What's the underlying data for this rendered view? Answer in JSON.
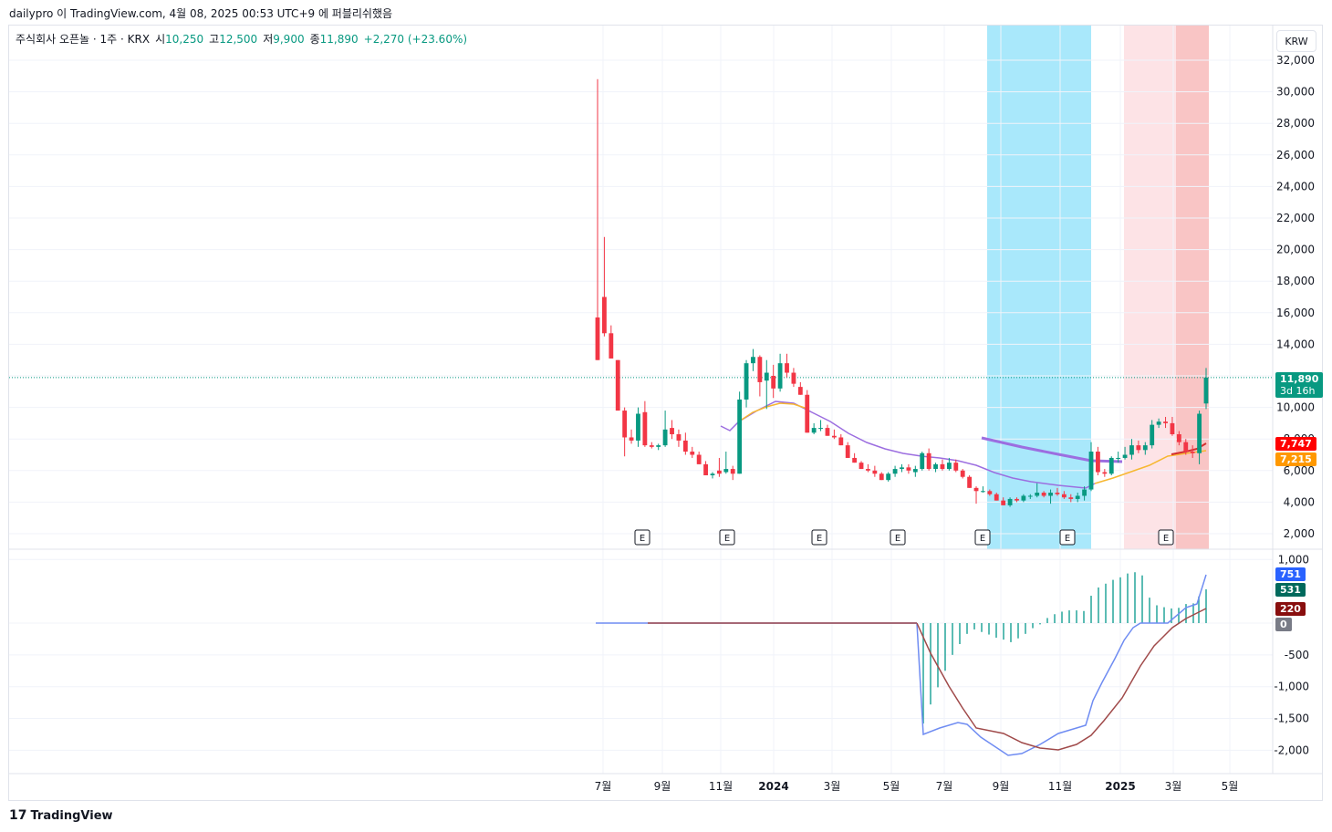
{
  "header": {
    "text": "dailypro 이 TradingView.com, 4월 08, 2025 00:53 UTC+9 에 퍼블리쉬했음"
  },
  "legend": {
    "symbol": "주식회사 오픈놀 · 1주 · KRX",
    "open_label": "시",
    "open_value": "10,250",
    "high_label": "고",
    "high_value": "12,500",
    "low_label": "저",
    "low_value": "9,900",
    "close_label": "종",
    "close_value": "11,890",
    "change": "+2,270 (+23.60%)"
  },
  "currency_button": "KRW",
  "price_axis_labels": [
    "32,000",
    "30,000",
    "28,000",
    "26,000",
    "24,000",
    "22,000",
    "20,000",
    "18,000",
    "16,000",
    "14,000",
    "10,000",
    "8,000",
    "6,000",
    "4,000",
    "2,000"
  ],
  "macd_axis_labels": [
    "1,000",
    "-500",
    "-1,000",
    "-1,500",
    "-2,000"
  ],
  "time_axis_labels": [
    "7월",
    "9월",
    "11월",
    "2024",
    "3월",
    "5월",
    "7월",
    "9월",
    "11월",
    "2025",
    "3월",
    "5월"
  ],
  "tags": {
    "last_price": "11,890",
    "countdown": "3d 16h",
    "ma_red": "7,747",
    "ma_orange": "7,215",
    "macd_line": "751",
    "histogram": "531",
    "signal": "220",
    "zero": "0"
  },
  "earnings_marker": "E",
  "footer": {
    "brand": "TradingView"
  },
  "colors": {
    "up": "#089981",
    "down": "#f23645",
    "purple_ma": "#9c6ee0",
    "orange_ma": "#f7b731",
    "red_ma": "#d32f2f",
    "macd": "#6f8cf2",
    "signal": "#a04a4a",
    "cyan_zone": "#a9e8fb",
    "pink_zone": "#fde3e6",
    "red_zone": "#f9c5c5"
  },
  "chart_data": {
    "type": "candlestick",
    "title": "",
    "price_scale": [
      2000,
      32000
    ],
    "candles": [
      {
        "o": 15700,
        "h": 30800,
        "l": 13000,
        "c": 13000
      },
      {
        "o": 17000,
        "h": 20800,
        "l": 14500,
        "c": 14700
      },
      {
        "o": 14700,
        "h": 15200,
        "l": 13100,
        "c": 13100
      },
      {
        "o": 13000,
        "h": 13000,
        "l": 9800,
        "c": 9800
      },
      {
        "o": 9800,
        "h": 10000,
        "l": 6900,
        "c": 8100
      },
      {
        "o": 8100,
        "h": 8600,
        "l": 7700,
        "c": 7900
      },
      {
        "o": 7900,
        "h": 10000,
        "l": 7500,
        "c": 9600
      },
      {
        "o": 9700,
        "h": 10400,
        "l": 7500,
        "c": 7600
      },
      {
        "o": 7600,
        "h": 7800,
        "l": 7400,
        "c": 7500
      },
      {
        "o": 7500,
        "h": 7700,
        "l": 7300,
        "c": 7600
      },
      {
        "o": 7600,
        "h": 9800,
        "l": 7500,
        "c": 8600
      },
      {
        "o": 8700,
        "h": 9200,
        "l": 8000,
        "c": 8300
      },
      {
        "o": 8300,
        "h": 8600,
        "l": 7500,
        "c": 7900
      },
      {
        "o": 7900,
        "h": 8400,
        "l": 7000,
        "c": 7200
      },
      {
        "o": 7200,
        "h": 7500,
        "l": 6800,
        "c": 7000
      },
      {
        "o": 7000,
        "h": 7200,
        "l": 6400,
        "c": 6400
      },
      {
        "o": 6400,
        "h": 6600,
        "l": 5700,
        "c": 5700
      },
      {
        "o": 5700,
        "h": 5900,
        "l": 5500,
        "c": 5800
      },
      {
        "o": 6000,
        "h": 6800,
        "l": 5600,
        "c": 5800
      },
      {
        "o": 5900,
        "h": 7200,
        "l": 5800,
        "c": 6100
      },
      {
        "o": 6100,
        "h": 6300,
        "l": 5400,
        "c": 5800
      },
      {
        "o": 5800,
        "h": 11000,
        "l": 5800,
        "c": 10500
      },
      {
        "o": 10500,
        "h": 13000,
        "l": 10000,
        "c": 12800
      },
      {
        "o": 12800,
        "h": 13700,
        "l": 12300,
        "c": 13200
      },
      {
        "o": 13200,
        "h": 13300,
        "l": 10700,
        "c": 11600
      },
      {
        "o": 11700,
        "h": 13000,
        "l": 9900,
        "c": 12200
      },
      {
        "o": 12000,
        "h": 12700,
        "l": 10600,
        "c": 11200
      },
      {
        "o": 11200,
        "h": 13400,
        "l": 11000,
        "c": 12800
      },
      {
        "o": 12800,
        "h": 13400,
        "l": 11900,
        "c": 12200
      },
      {
        "o": 12200,
        "h": 12500,
        "l": 11300,
        "c": 11500
      },
      {
        "o": 11300,
        "h": 11600,
        "l": 10800,
        "c": 10800
      },
      {
        "o": 10800,
        "h": 11100,
        "l": 8400,
        "c": 8400
      },
      {
        "o": 8400,
        "h": 9000,
        "l": 8300,
        "c": 8700
      },
      {
        "o": 8700,
        "h": 9200,
        "l": 8500,
        "c": 8700
      },
      {
        "o": 8700,
        "h": 8900,
        "l": 8200,
        "c": 8200
      },
      {
        "o": 8200,
        "h": 8600,
        "l": 8000,
        "c": 8100
      },
      {
        "o": 8100,
        "h": 8300,
        "l": 7600,
        "c": 7600
      },
      {
        "o": 7600,
        "h": 7800,
        "l": 6800,
        "c": 6800
      },
      {
        "o": 6800,
        "h": 7100,
        "l": 6500,
        "c": 6500
      },
      {
        "o": 6500,
        "h": 6600,
        "l": 6100,
        "c": 6100
      },
      {
        "o": 6100,
        "h": 6400,
        "l": 5900,
        "c": 6000
      },
      {
        "o": 6000,
        "h": 6300,
        "l": 5600,
        "c": 5800
      },
      {
        "o": 5800,
        "h": 5900,
        "l": 5400,
        "c": 5400
      },
      {
        "o": 5400,
        "h": 5900,
        "l": 5300,
        "c": 5800
      },
      {
        "o": 5800,
        "h": 6300,
        "l": 5600,
        "c": 6100
      },
      {
        "o": 6100,
        "h": 6400,
        "l": 5900,
        "c": 6200
      },
      {
        "o": 6200,
        "h": 6400,
        "l": 5800,
        "c": 6000
      },
      {
        "o": 5900,
        "h": 6300,
        "l": 5600,
        "c": 6100
      },
      {
        "o": 6100,
        "h": 7200,
        "l": 6000,
        "c": 7100
      },
      {
        "o": 7100,
        "h": 7400,
        "l": 6000,
        "c": 6100
      },
      {
        "o": 6100,
        "h": 6500,
        "l": 5900,
        "c": 6400
      },
      {
        "o": 6400,
        "h": 6700,
        "l": 6000,
        "c": 6100
      },
      {
        "o": 6100,
        "h": 6800,
        "l": 6000,
        "c": 6500
      },
      {
        "o": 6500,
        "h": 6700,
        "l": 5900,
        "c": 6000
      },
      {
        "o": 6000,
        "h": 6100,
        "l": 5500,
        "c": 5600
      },
      {
        "o": 5600,
        "h": 5700,
        "l": 4900,
        "c": 4900
      },
      {
        "o": 4900,
        "h": 5000,
        "l": 3900,
        "c": 4700
      },
      {
        "o": 4700,
        "h": 5000,
        "l": 4600,
        "c": 4700
      },
      {
        "o": 4700,
        "h": 4800,
        "l": 4400,
        "c": 4500
      },
      {
        "o": 4500,
        "h": 4600,
        "l": 4100,
        "c": 4100
      },
      {
        "o": 4100,
        "h": 4300,
        "l": 3800,
        "c": 3800
      },
      {
        "o": 3800,
        "h": 4300,
        "l": 3700,
        "c": 4200
      },
      {
        "o": 4200,
        "h": 4300,
        "l": 4000,
        "c": 4100
      },
      {
        "o": 4100,
        "h": 4500,
        "l": 4000,
        "c": 4400
      },
      {
        "o": 4400,
        "h": 4500,
        "l": 4200,
        "c": 4400
      },
      {
        "o": 4400,
        "h": 5200,
        "l": 4300,
        "c": 4600
      },
      {
        "o": 4600,
        "h": 4700,
        "l": 4300,
        "c": 4400
      },
      {
        "o": 4400,
        "h": 4800,
        "l": 3900,
        "c": 4600
      },
      {
        "o": 4600,
        "h": 4900,
        "l": 4400,
        "c": 4500
      },
      {
        "o": 4500,
        "h": 4700,
        "l": 4200,
        "c": 4300
      },
      {
        "o": 4300,
        "h": 4500,
        "l": 4000,
        "c": 4200
      },
      {
        "o": 4200,
        "h": 4600,
        "l": 4000,
        "c": 4400
      },
      {
        "o": 4400,
        "h": 5000,
        "l": 4100,
        "c": 4800
      },
      {
        "o": 4800,
        "h": 7800,
        "l": 4700,
        "c": 7200
      },
      {
        "o": 7200,
        "h": 7500,
        "l": 5700,
        "c": 5900
      },
      {
        "o": 5900,
        "h": 6100,
        "l": 5600,
        "c": 5800
      },
      {
        "o": 5800,
        "h": 6900,
        "l": 5700,
        "c": 6800
      },
      {
        "o": 6800,
        "h": 7200,
        "l": 6500,
        "c": 6800
      },
      {
        "o": 6800,
        "h": 7500,
        "l": 6700,
        "c": 7000
      },
      {
        "o": 7000,
        "h": 8000,
        "l": 6700,
        "c": 7600
      },
      {
        "o": 7600,
        "h": 7900,
        "l": 7100,
        "c": 7300
      },
      {
        "o": 7300,
        "h": 7800,
        "l": 7000,
        "c": 7600
      },
      {
        "o": 7600,
        "h": 9200,
        "l": 7400,
        "c": 8900
      },
      {
        "o": 8900,
        "h": 9300,
        "l": 8700,
        "c": 9100
      },
      {
        "o": 9100,
        "h": 9400,
        "l": 8700,
        "c": 9000
      },
      {
        "o": 9000,
        "h": 9400,
        "l": 8200,
        "c": 8300
      },
      {
        "o": 8300,
        "h": 8500,
        "l": 7600,
        "c": 7800
      },
      {
        "o": 7800,
        "h": 8000,
        "l": 7000,
        "c": 7200
      },
      {
        "o": 7200,
        "h": 7600,
        "l": 6800,
        "c": 7100
      },
      {
        "o": 7100,
        "h": 9800,
        "l": 6400,
        "c": 9600
      },
      {
        "o": 10250,
        "h": 12500,
        "l": 9900,
        "c": 11890
      }
    ]
  }
}
